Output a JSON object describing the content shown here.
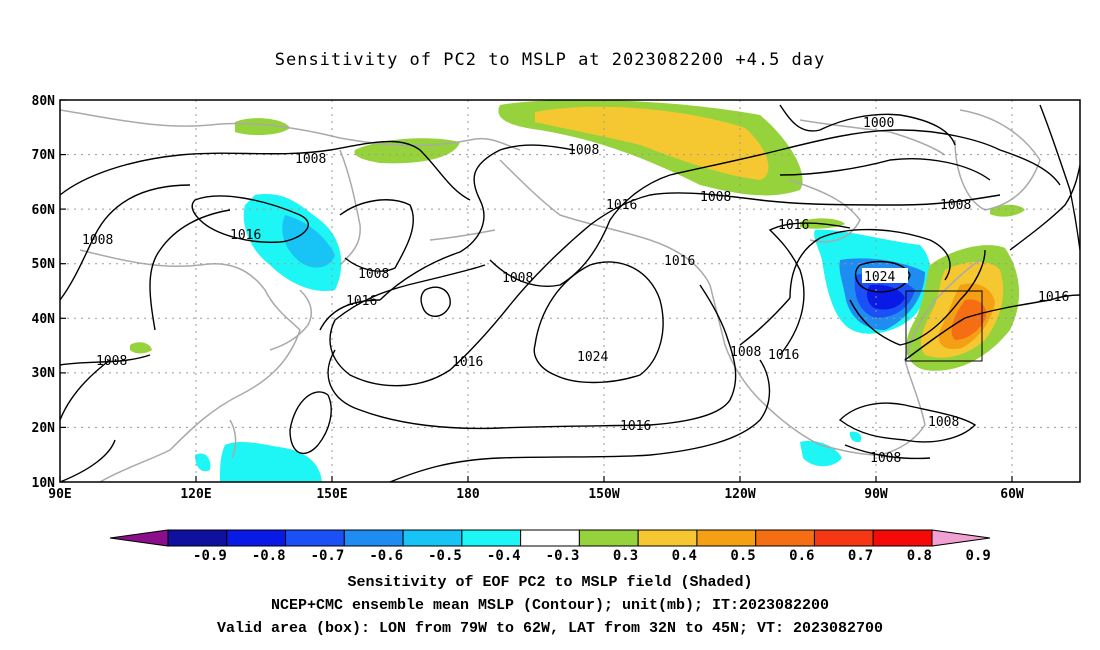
{
  "title": "Sensitivity of PC2 to MSLP at 2023082200 +4.5 day",
  "lat_labels": [
    "80N",
    "70N",
    "60N",
    "50N",
    "40N",
    "30N",
    "20N",
    "10N"
  ],
  "lon_labels": [
    "90E",
    "120E",
    "150E",
    "180",
    "150W",
    "120W",
    "90W",
    "60W"
  ],
  "contour_labels": [
    "1008",
    "1008",
    "1008",
    "1016",
    "1008",
    "1008",
    "1016",
    "1008",
    "1000",
    "1016",
    "1008",
    "1016",
    "1016",
    "1024",
    "1016",
    "1024",
    "1016",
    "1008",
    "1016",
    "1016",
    "1008",
    "1008",
    "1008"
  ],
  "colorbar": {
    "labels": [
      "-0.9",
      "-0.8",
      "-0.7",
      "-0.6",
      "-0.5",
      "-0.4",
      "-0.3",
      "0.3",
      "0.4",
      "0.5",
      "0.6",
      "0.7",
      "0.8",
      "0.9"
    ],
    "colors": [
      "#8a0f8a",
      "#1010a0",
      "#0a1ae6",
      "#1a50f5",
      "#1e8cf0",
      "#18c4f5",
      "#1ef5f5",
      "#ffffff",
      "#95d23c",
      "#f5c832",
      "#f5a014",
      "#f56e14",
      "#f53714",
      "#f50a0a",
      "#f0a0d2"
    ]
  },
  "valid_box": {
    "lon_min": "79W",
    "lon_max": "62W",
    "lat_min": "32N",
    "lat_max": "45N"
  },
  "footer": {
    "line1": "Sensitivity of EOF PC2 to MSLP field (Shaded)",
    "line2": "NCEP+CMC ensemble mean MSLP (Contour); unit(mb); IT:2023082200",
    "line3": "Valid area (box): LON from 79W to 62W, LAT from 32N to 45N; VT: 2023082700"
  }
}
